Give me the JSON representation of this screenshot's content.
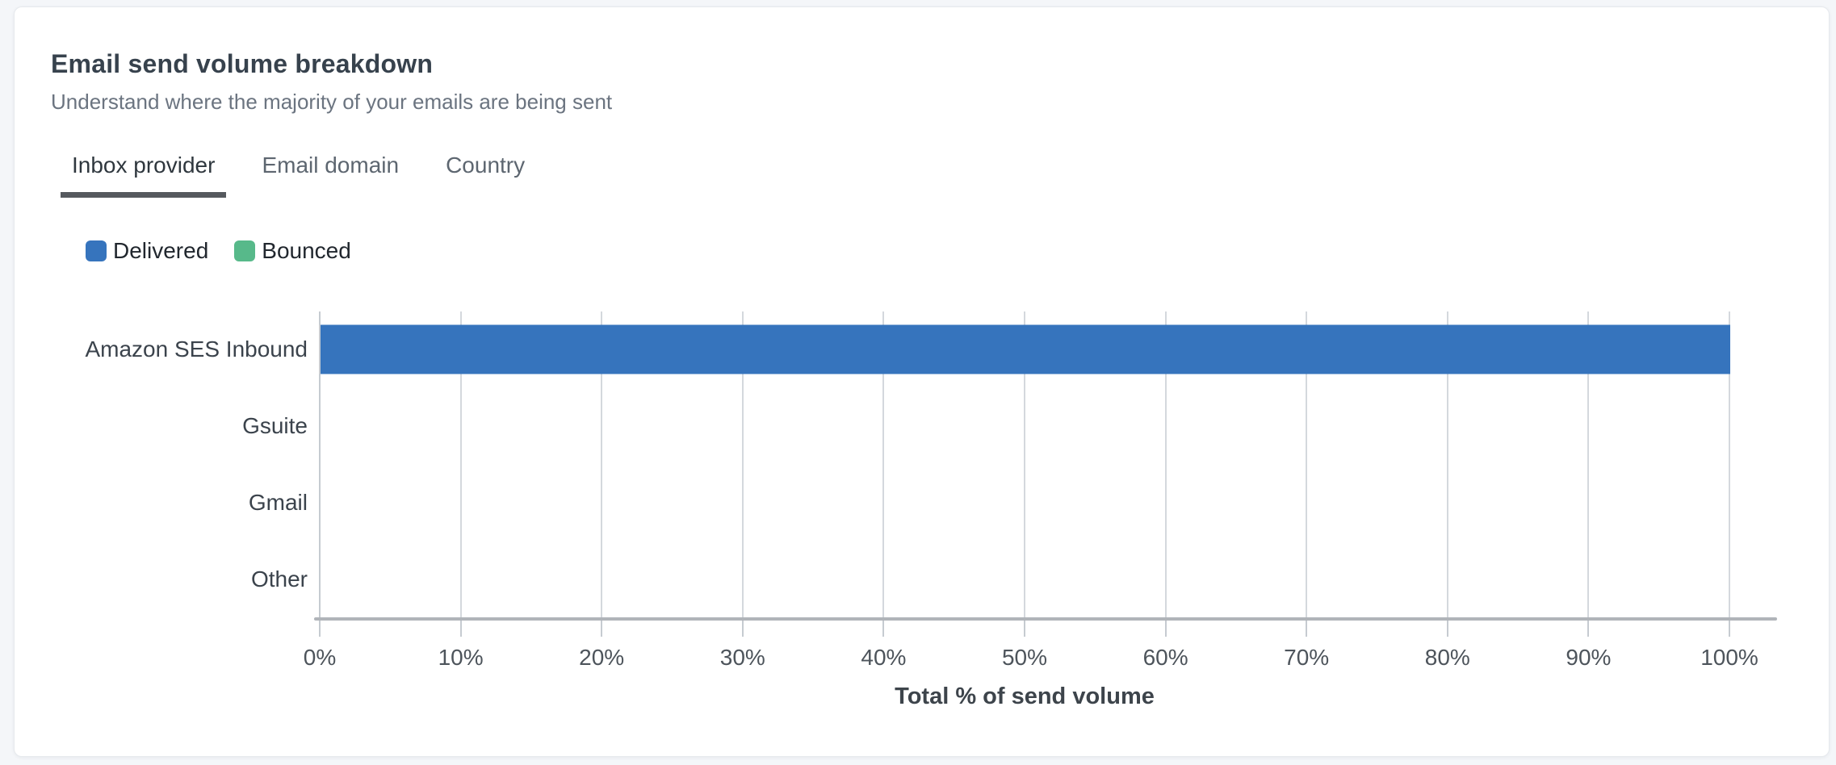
{
  "card": {
    "title": "Email send volume breakdown",
    "subtitle": "Understand where the majority of your emails are being sent",
    "tabs": [
      {
        "label": "Inbox provider",
        "active": true
      },
      {
        "label": "Email domain",
        "active": false
      },
      {
        "label": "Country",
        "active": false
      }
    ],
    "legend": [
      {
        "label": "Delivered",
        "color": "#3674bd"
      },
      {
        "label": "Bounced",
        "color": "#57b98a"
      }
    ]
  },
  "chart_data": {
    "type": "bar",
    "orientation": "horizontal",
    "title": "Email send volume breakdown",
    "categories": [
      "Amazon SES Inbound",
      "Gsuite",
      "Gmail",
      "Other"
    ],
    "series": [
      {
        "name": "Delivered",
        "color": "#3674bd",
        "values": [
          100,
          0,
          0,
          0
        ]
      },
      {
        "name": "Bounced",
        "color": "#57b98a",
        "values": [
          0,
          0,
          0,
          0
        ]
      }
    ],
    "xlabel": "Total % of send volume",
    "ylabel": "",
    "xlim": [
      0,
      100
    ],
    "x_ticks": [
      "0%",
      "10%",
      "20%",
      "30%",
      "40%",
      "50%",
      "60%",
      "70%",
      "80%",
      "90%",
      "100%"
    ],
    "grid": true,
    "legend_position": "top-left"
  },
  "colors": {
    "page_bg": "#f4f6f9",
    "card_bg": "#ffffff",
    "accent_blue": "#3674bd",
    "accent_green": "#57b98a",
    "gridline": "#d4d8dd",
    "axis_line": "#b0b4b9"
  }
}
